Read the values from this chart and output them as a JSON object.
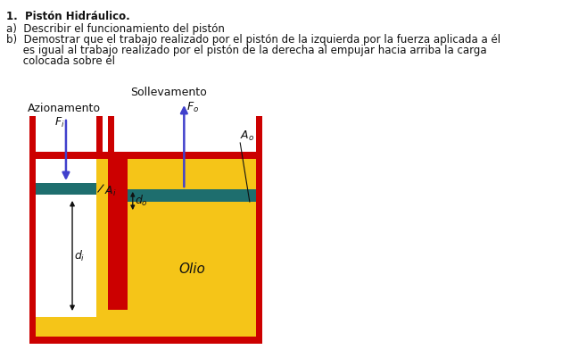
{
  "title_bold": "1.  Pistón Hidráulico.",
  "text_a": "a)  Describir el funcionamiento del pistón",
  "text_b1": "b)  Demostrar que el trabajo realizado por el pistón de la izquierda por la fuerza aplicada a él",
  "text_b2": "     es igual al trabajo realizado por el pistón de la derecha al empujar hacia arriba la carga",
  "text_b3": "     colocada sobre él",
  "label_azionamento": "Azionamento",
  "label_sollevamento": "Sollevamento",
  "label_Fi": "$F_i$",
  "label_Fo": "$F_o$",
  "label_Ai": "$A_i$",
  "label_Ao": "$A_o$",
  "label_di": "$d_i$",
  "label_do": "$d_o$",
  "label_olio": "Olio",
  "color_red": "#cc0000",
  "color_yellow": "#f5c518",
  "color_teal": "#1e6e6e",
  "color_blue_arrow": "#4040cc",
  "color_white": "#ffffff",
  "color_text": "#111111",
  "bg_color": "#ffffff"
}
